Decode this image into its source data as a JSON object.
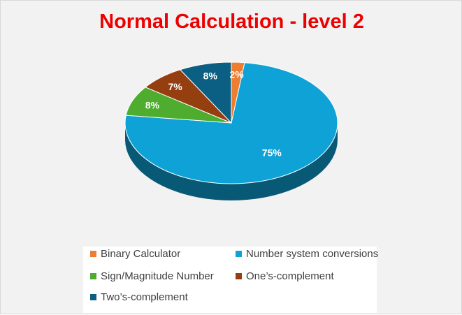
{
  "chart_data": {
    "type": "pie",
    "title": "Normal Calculation - level 2",
    "three_d": true,
    "legend_position": "bottom",
    "slices": [
      {
        "label": "Binary Calculator",
        "value": 2,
        "display": "2%",
        "color": "#ed7d31"
      },
      {
        "label": "Number system conversions",
        "value": 75,
        "display": "75%",
        "color": "#0fa2d6"
      },
      {
        "label": "Sign/Magnitude Number",
        "value": 8,
        "display": "8%",
        "color": "#4eac2e"
      },
      {
        "label": "One’s-complement",
        "value": 7,
        "display": "7%",
        "color": "#953f10"
      },
      {
        "label": "Two’s-complement",
        "value": 8,
        "display": "8%",
        "color": "#0b5f82"
      }
    ]
  }
}
